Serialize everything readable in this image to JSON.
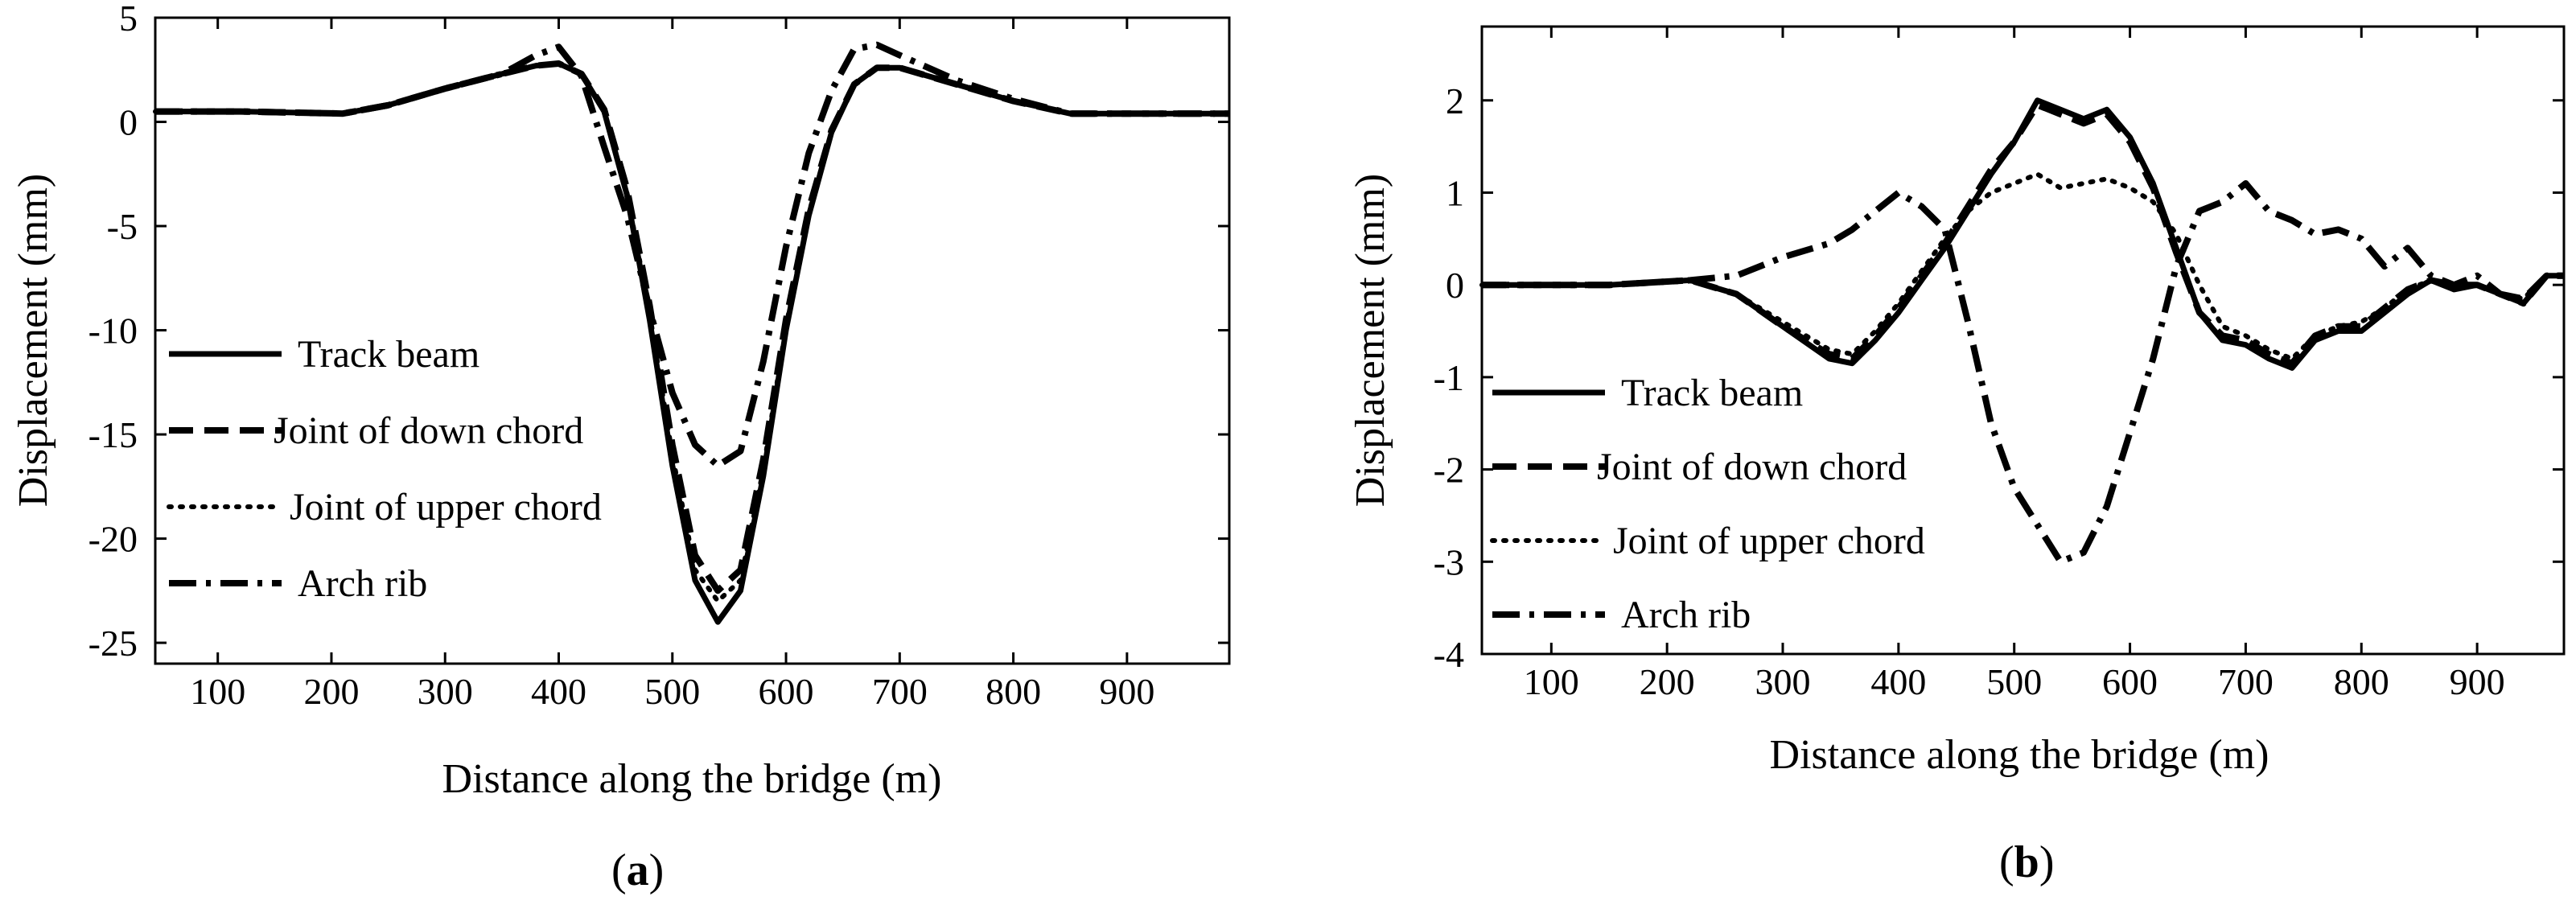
{
  "chart_data": [
    {
      "type": "line",
      "panel_label": "a",
      "title": "",
      "xlabel": "Distance along the bridge (m)",
      "ylabel": "Displacement (mm)",
      "xlim": [
        45,
        990
      ],
      "ylim": [
        -26,
        5
      ],
      "xticks": [
        100,
        200,
        300,
        400,
        500,
        600,
        700,
        800,
        900
      ],
      "yticks": [
        5,
        0,
        -5,
        -10,
        -15,
        -20,
        -25
      ],
      "legend": {
        "position": "left",
        "entries": [
          "Track beam",
          "Joint of down chord",
          "Joint of upper chord",
          "Arch rib"
        ]
      },
      "series": [
        {
          "name": "Track beam",
          "style": "solid",
          "x": [
            45,
            120,
            210,
            250,
            300,
            350,
            380,
            400,
            420,
            440,
            460,
            480,
            500,
            520,
            540,
            560,
            580,
            600,
            620,
            640,
            660,
            680,
            700,
            750,
            800,
            850,
            880,
            990
          ],
          "y": [
            0.5,
            0.5,
            0.4,
            0.8,
            1.6,
            2.3,
            2.7,
            2.8,
            2.3,
            0.5,
            -3.5,
            -9.5,
            -16.5,
            -22,
            -24,
            -22.5,
            -17,
            -10,
            -4.5,
            -0.5,
            1.8,
            2.6,
            2.6,
            1.8,
            1,
            0.4,
            0.4,
            0.4
          ]
        },
        {
          "name": "Joint of down chord",
          "style": "dashed",
          "x": [
            45,
            120,
            210,
            250,
            300,
            350,
            380,
            400,
            420,
            440,
            460,
            480,
            500,
            520,
            540,
            560,
            580,
            600,
            620,
            640,
            660,
            680,
            700,
            750,
            800,
            850,
            880,
            990
          ],
          "y": [
            0.5,
            0.5,
            0.4,
            0.8,
            1.6,
            2.3,
            2.7,
            2.8,
            2.3,
            0.6,
            -3.2,
            -8.8,
            -15.5,
            -20.8,
            -22.5,
            -21.5,
            -16.2,
            -9.5,
            -4.2,
            -0.4,
            1.8,
            2.6,
            2.6,
            1.8,
            1,
            0.4,
            0.4,
            0.4
          ]
        },
        {
          "name": "Joint of upper chord",
          "style": "dotted",
          "x": [
            45,
            120,
            210,
            250,
            300,
            350,
            380,
            400,
            420,
            440,
            460,
            480,
            500,
            520,
            540,
            560,
            580,
            600,
            620,
            640,
            660,
            680,
            700,
            750,
            800,
            850,
            880,
            990
          ],
          "y": [
            0.5,
            0.5,
            0.4,
            0.8,
            1.6,
            2.3,
            2.7,
            2.8,
            2.3,
            0.5,
            -3.4,
            -9.2,
            -16,
            -21.5,
            -23,
            -22,
            -16.7,
            -9.8,
            -4.4,
            -0.5,
            1.8,
            2.6,
            2.6,
            1.8,
            1,
            0.4,
            0.4,
            0.4
          ]
        },
        {
          "name": "Arch rib",
          "style": "dashdot",
          "x": [
            45,
            120,
            210,
            250,
            300,
            350,
            380,
            400,
            420,
            440,
            460,
            480,
            500,
            520,
            540,
            560,
            580,
            600,
            620,
            640,
            660,
            680,
            700,
            750,
            800,
            850,
            880,
            990
          ],
          "y": [
            0.5,
            0.5,
            0.4,
            0.8,
            1.6,
            2.3,
            3.2,
            3.6,
            2.2,
            -1.2,
            -4.5,
            -9,
            -13,
            -15.5,
            -16.5,
            -15.8,
            -11.5,
            -6,
            -1.5,
            1.5,
            3.5,
            3.7,
            3.2,
            2,
            1.1,
            0.4,
            0.4,
            0.4
          ]
        }
      ]
    },
    {
      "type": "line",
      "panel_label": "b",
      "title": "",
      "xlabel": "Distance along the bridge (m)",
      "ylabel": "Displacement (mm)",
      "xlim": [
        40,
        975
      ],
      "ylim": [
        -4,
        2.8
      ],
      "xticks": [
        100,
        200,
        300,
        400,
        500,
        600,
        700,
        800,
        900
      ],
      "yticks": [
        2,
        1,
        0,
        -1,
        -2,
        -3,
        -4
      ],
      "legend": {
        "position": "left",
        "entries": [
          "Track beam",
          "Joint of down chord",
          "Joint of upper chord",
          "Arch rib"
        ]
      },
      "series": [
        {
          "name": "Track beam",
          "style": "solid",
          "x": [
            40,
            150,
            220,
            260,
            300,
            340,
            360,
            380,
            400,
            420,
            440,
            460,
            480,
            500,
            520,
            540,
            560,
            580,
            600,
            620,
            640,
            660,
            680,
            700,
            720,
            740,
            760,
            780,
            800,
            820,
            840,
            860,
            880,
            900,
            920,
            940,
            960,
            975
          ],
          "y": [
            0,
            0,
            0.05,
            -0.1,
            -0.45,
            -0.8,
            -0.85,
            -0.6,
            -0.3,
            0.05,
            0.4,
            0.8,
            1.2,
            1.55,
            2,
            1.9,
            1.8,
            1.9,
            1.6,
            1.1,
            0.4,
            -0.3,
            -0.6,
            -0.65,
            -0.8,
            -0.9,
            -0.6,
            -0.5,
            -0.5,
            -0.3,
            -0.1,
            0.05,
            -0.05,
            0,
            -0.1,
            -0.2,
            0.1,
            0.1
          ]
        },
        {
          "name": "Joint of down chord",
          "style": "dashed",
          "x": [
            40,
            150,
            220,
            260,
            300,
            340,
            360,
            380,
            400,
            420,
            440,
            460,
            480,
            500,
            520,
            540,
            560,
            580,
            600,
            620,
            640,
            660,
            680,
            700,
            720,
            740,
            760,
            780,
            800,
            820,
            840,
            860,
            880,
            900,
            920,
            940,
            960,
            975
          ],
          "y": [
            0,
            0,
            0.05,
            -0.1,
            -0.45,
            -0.75,
            -0.8,
            -0.55,
            -0.25,
            0.1,
            0.45,
            0.85,
            1.25,
            1.55,
            1.95,
            1.85,
            1.75,
            1.85,
            1.55,
            1.05,
            0.35,
            -0.3,
            -0.55,
            -0.6,
            -0.75,
            -0.85,
            -0.55,
            -0.45,
            -0.45,
            -0.25,
            -0.05,
            0.05,
            0,
            0,
            -0.1,
            -0.15,
            0.1,
            0.1
          ]
        },
        {
          "name": "Joint of upper chord",
          "style": "dotted",
          "x": [
            40,
            150,
            220,
            260,
            300,
            340,
            360,
            380,
            400,
            420,
            440,
            460,
            480,
            500,
            520,
            540,
            560,
            580,
            600,
            620,
            640,
            660,
            680,
            700,
            720,
            740,
            760,
            780,
            800,
            820,
            840,
            860,
            880,
            900,
            920,
            940,
            960,
            975
          ],
          "y": [
            0,
            0,
            0.05,
            -0.1,
            -0.4,
            -0.7,
            -0.75,
            -0.5,
            -0.2,
            0.15,
            0.5,
            0.8,
            1,
            1.1,
            1.2,
            1.05,
            1.1,
            1.15,
            1.05,
            0.9,
            0.55,
            0,
            -0.45,
            -0.55,
            -0.7,
            -0.8,
            -0.55,
            -0.45,
            -0.4,
            -0.25,
            -0.05,
            0.05,
            0,
            0,
            -0.1,
            -0.15,
            0.1,
            0.1
          ]
        },
        {
          "name": "Arch rib",
          "style": "dashdot",
          "x": [
            40,
            150,
            220,
            260,
            300,
            340,
            360,
            380,
            400,
            420,
            440,
            460,
            480,
            500,
            520,
            540,
            560,
            580,
            600,
            620,
            640,
            660,
            680,
            700,
            720,
            740,
            760,
            780,
            800,
            820,
            840,
            860,
            880,
            900,
            920,
            940,
            960,
            975
          ],
          "y": [
            0,
            0,
            0.05,
            0.1,
            0.3,
            0.45,
            0.6,
            0.8,
            1,
            0.85,
            0.6,
            -0.4,
            -1.5,
            -2.2,
            -2.6,
            -3,
            -2.9,
            -2.4,
            -1.6,
            -0.8,
            0.2,
            0.8,
            0.9,
            1.1,
            0.8,
            0.7,
            0.55,
            0.6,
            0.5,
            0.2,
            0.4,
            0.1,
            0,
            0.1,
            -0.1,
            -0.2,
            0.1,
            0.1
          ]
        }
      ]
    }
  ]
}
